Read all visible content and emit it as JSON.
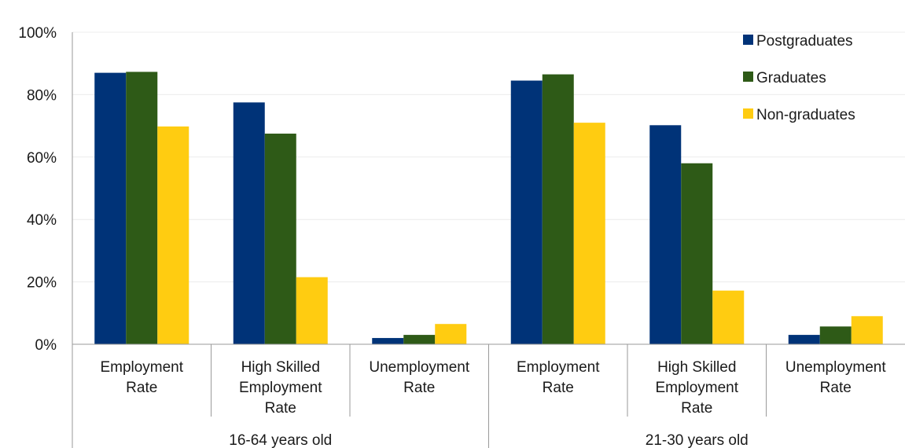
{
  "chart_data": {
    "type": "bar",
    "groups": [
      {
        "label": "16-64 years old",
        "categories": [
          [
            "Employment",
            "Rate"
          ],
          [
            "High Skilled",
            "Employment",
            "Rate"
          ],
          [
            "Unemployment",
            "Rate"
          ]
        ]
      },
      {
        "label": "21-30 years old",
        "categories": [
          [
            "Employment",
            "Rate"
          ],
          [
            "High Skilled",
            "Employment",
            "Rate"
          ],
          [
            "Unemployment",
            "Rate"
          ]
        ]
      }
    ],
    "series": [
      {
        "name": "Postgraduates",
        "color": "#003378",
        "values": [
          87,
          77.5,
          2,
          84.5,
          70.2,
          3
        ]
      },
      {
        "name": "Graduates",
        "color": "#2e5a17",
        "values": [
          87.3,
          67.5,
          3,
          86.5,
          58,
          5.7
        ]
      },
      {
        "name": "Non-graduates",
        "color": "#ffcc11",
        "values": [
          69.8,
          21.5,
          6.5,
          71,
          17.2,
          9
        ]
      }
    ],
    "y_axis": {
      "min": 0,
      "max": 100,
      "step": 20,
      "tick_labels": [
        "0%",
        "20%",
        "40%",
        "60%",
        "80%",
        "100%"
      ]
    },
    "grid": true,
    "legend": "top-right"
  }
}
